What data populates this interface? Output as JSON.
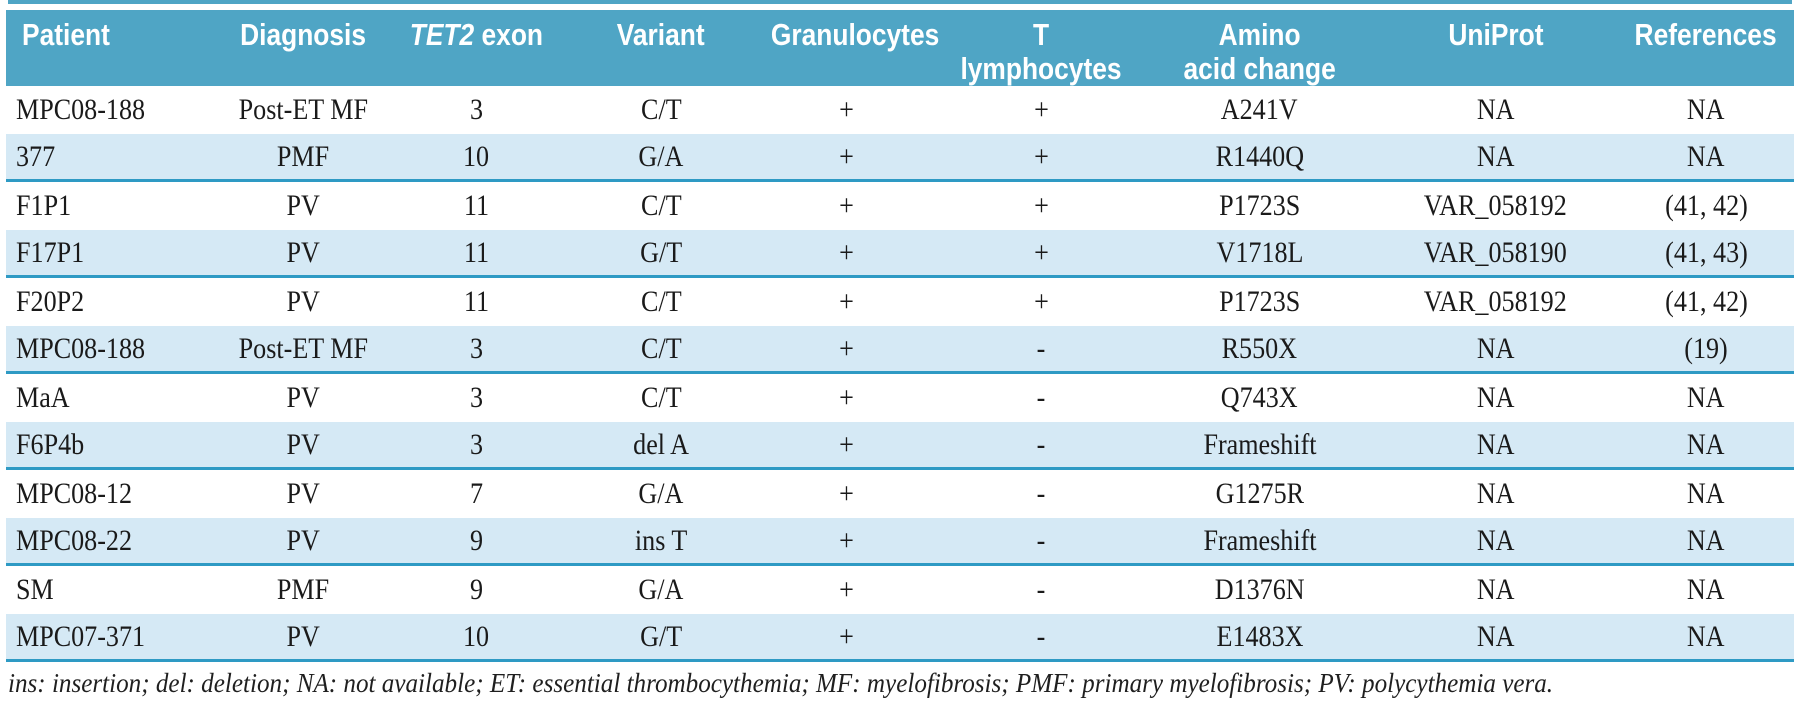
{
  "colors": {
    "header_bg": "#4FA5C5",
    "header_text": "#FFFFFF",
    "alt_row_bg": "#D5E9F5",
    "alt_row_border": "#2E9AC4",
    "body_text": "#1A1A1A"
  },
  "table": {
    "columns": [
      {
        "id": "patient",
        "label": "Patient"
      },
      {
        "id": "diagnosis",
        "label": "Diagnosis"
      },
      {
        "id": "tet2-exon",
        "label": "TET2 exon",
        "italic_prefix": "TET2"
      },
      {
        "id": "variant",
        "label": "Variant"
      },
      {
        "id": "granulocytes",
        "label": "Granulocytes"
      },
      {
        "id": "t-lymphocytes",
        "label": "T lymphocytes"
      },
      {
        "id": "amino-acid-change",
        "label": "Amino\nacid change"
      },
      {
        "id": "uniprot",
        "label": "UniProt"
      },
      {
        "id": "references",
        "label": "References"
      }
    ],
    "rows": [
      [
        "MPC08-188",
        "Post-ET MF",
        "3",
        "C/T",
        "+",
        "+",
        "A241V",
        "NA",
        "NA"
      ],
      [
        "377",
        "PMF",
        "10",
        "G/A",
        "+",
        "+",
        "R1440Q",
        "NA",
        "NA"
      ],
      [
        "F1P1",
        "PV",
        "11",
        "C/T",
        "+",
        "+",
        "P1723S",
        "VAR_058192",
        "(41, 42)"
      ],
      [
        "F17P1",
        "PV",
        "11",
        "G/T",
        "+",
        "+",
        "V1718L",
        "VAR_058190",
        "(41, 43)"
      ],
      [
        "F20P2",
        "PV",
        "11",
        "C/T",
        "+",
        "+",
        "P1723S",
        "VAR_058192",
        "(41, 42)"
      ],
      [
        "MPC08-188",
        "Post-ET MF",
        "3",
        "C/T",
        "+",
        "-",
        "R550X",
        "NA",
        "(19)"
      ],
      [
        "MaA",
        "PV",
        "3",
        "C/T",
        "+",
        "-",
        "Q743X",
        "NA",
        "NA"
      ],
      [
        "F6P4b",
        "PV",
        "3",
        "del A",
        "+",
        "-",
        "Frameshift",
        "NA",
        "NA"
      ],
      [
        "MPC08-12",
        "PV",
        "7",
        "G/A",
        "+",
        "-",
        "G1275R",
        "NA",
        "NA"
      ],
      [
        "MPC08-22",
        "PV",
        "9",
        "ins T",
        "+",
        "-",
        "Frameshift",
        "NA",
        "NA"
      ],
      [
        "SM",
        "PMF",
        "9",
        "G/A",
        "+",
        "-",
        "D1376N",
        "NA",
        "NA"
      ],
      [
        "MPC07-371",
        "PV",
        "10",
        "G/T",
        "+",
        "-",
        "E1483X",
        "NA",
        "NA"
      ]
    ],
    "footnote": "ins: insertion; del: deletion; NA: not available; ET: essential thrombocythemia; MF: myelofibrosis; PMF: primary myelofibrosis; PV: polycythemia vera."
  }
}
